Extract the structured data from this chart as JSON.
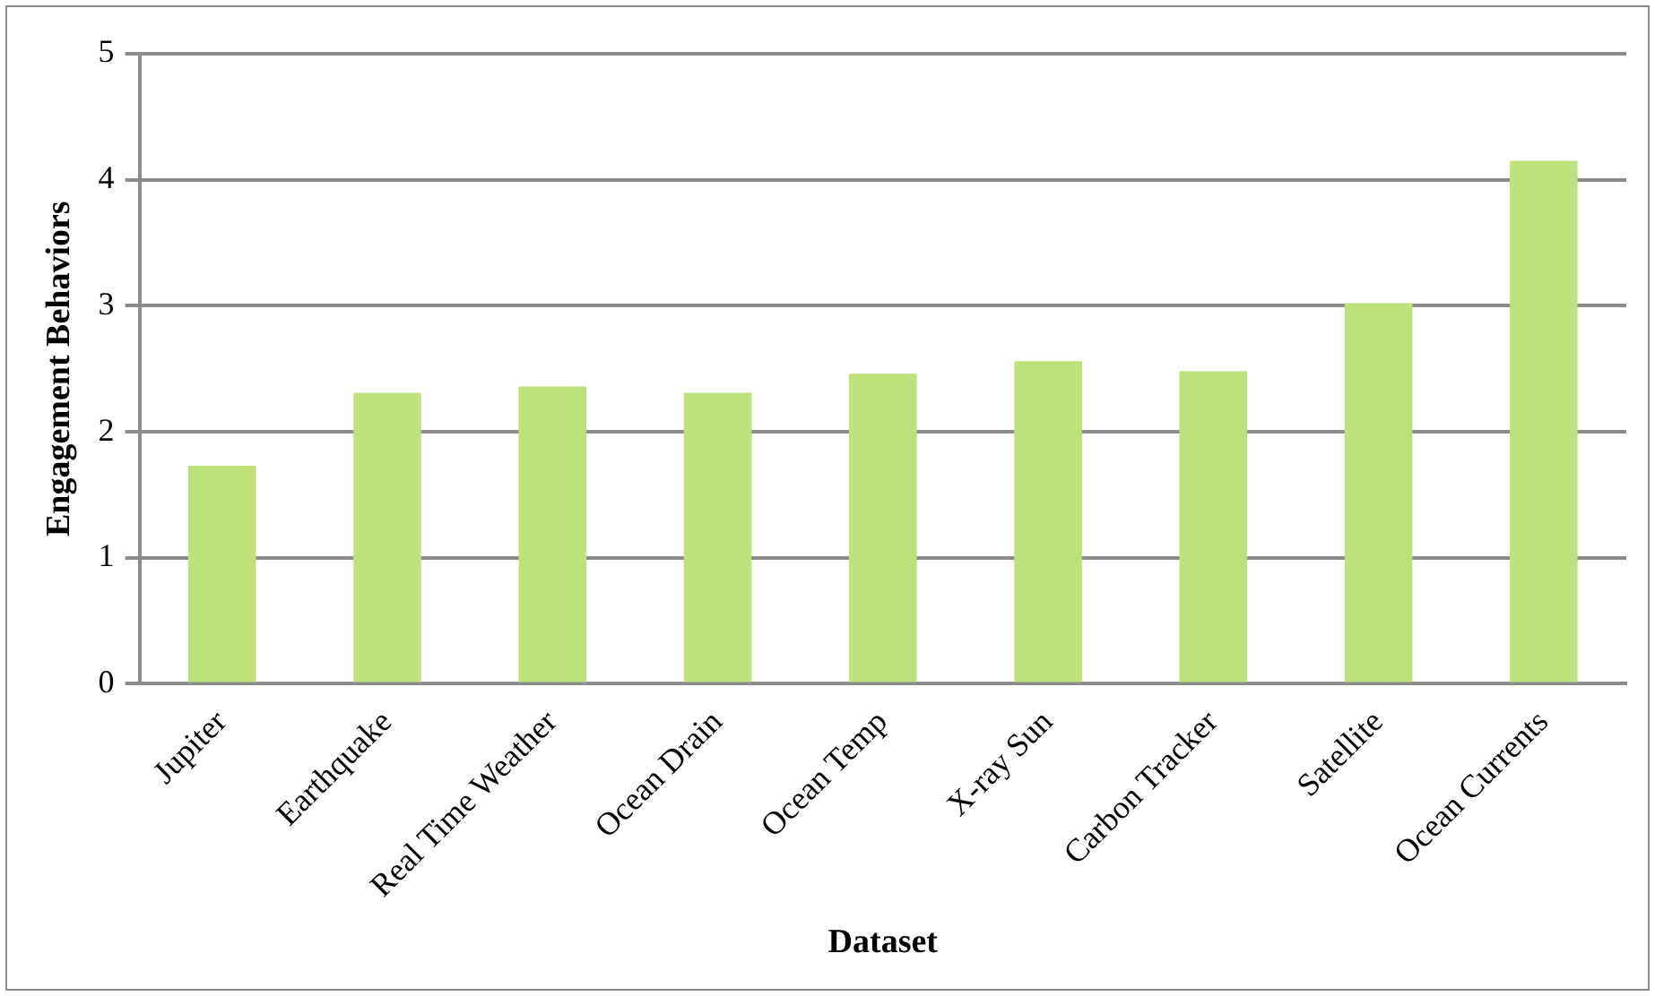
{
  "chart_data": {
    "type": "bar",
    "xlabel": "Dataset",
    "ylabel": "Engagement Behaviors",
    "categories": [
      "Jupiter",
      "Earthquake",
      "Real Time Weather",
      "Ocean Drain",
      "Ocean Temp",
      "X-ray Sun",
      "Carbon Tracker",
      "Satellite",
      "Ocean Currents"
    ],
    "values": [
      1.73,
      2.31,
      2.36,
      2.31,
      2.46,
      2.56,
      2.48,
      3.02,
      4.15
    ],
    "color": "#bde27a",
    "ylim": [
      0,
      5
    ],
    "yticks": [
      0,
      1,
      2,
      3,
      4,
      5
    ],
    "grid": "y",
    "legend": false
  }
}
